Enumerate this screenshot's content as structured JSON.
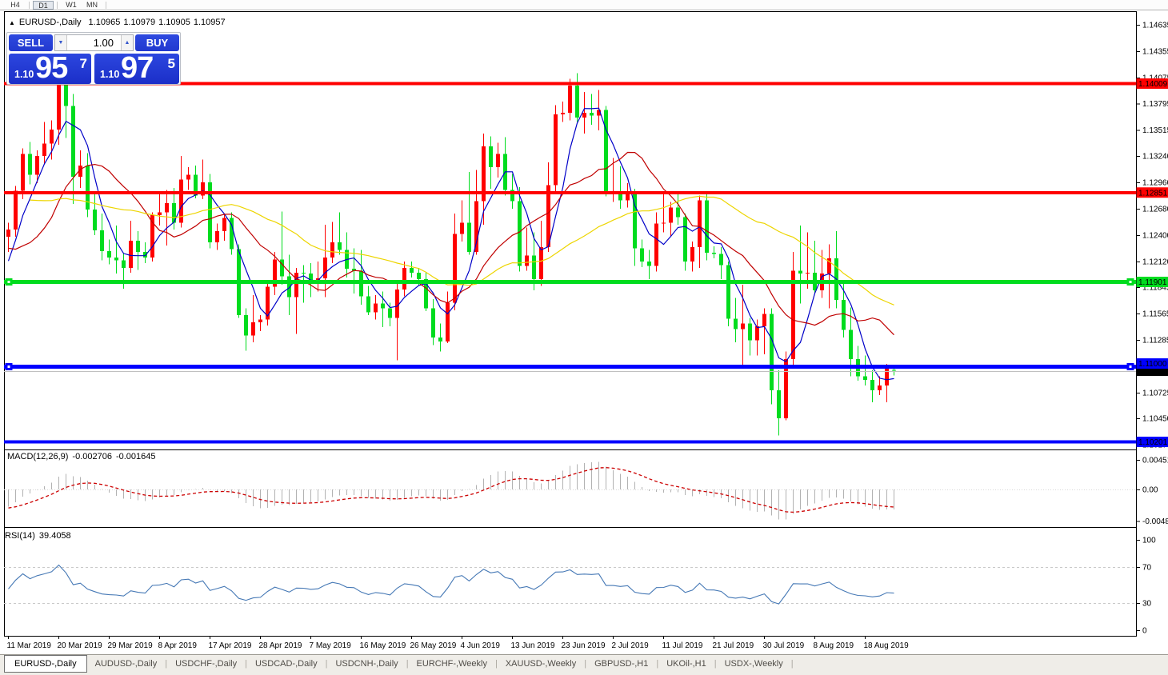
{
  "toolbar": {
    "buttons": [
      {
        "label": "H4",
        "active": false
      },
      {
        "label": "D1",
        "active": true
      },
      {
        "label": "W1",
        "active": false
      },
      {
        "label": "MN",
        "active": false
      }
    ]
  },
  "chart_header": {
    "collapse_icon": "▲",
    "symbol": "EURUSD-,Daily",
    "open": "1.10965",
    "high": "1.10979",
    "low": "1.10905",
    "close": "1.10957"
  },
  "trade_panel": {
    "sell_label": "SELL",
    "buy_label": "BUY",
    "volume": "1.00",
    "decrease_icon": "▼",
    "increase_icon": "▲",
    "sell_price": {
      "prefix": "1.10",
      "main": "95",
      "sup": "7"
    },
    "buy_price": {
      "prefix": "1.10",
      "main": "97",
      "sup": "5"
    }
  },
  "indicators": {
    "macd": {
      "name": "MACD(12,26,9)",
      "main": "-0.002706",
      "signal": "-0.001645"
    },
    "rsi": {
      "name": "RSI(14)",
      "value": "39.4058"
    }
  },
  "tabs": [
    {
      "label": "EURUSD-,Daily",
      "active": true
    },
    {
      "label": "AUDUSD-,Daily",
      "active": false
    },
    {
      "label": "USDCHF-,Daily",
      "active": false
    },
    {
      "label": "USDCAD-,Daily",
      "active": false
    },
    {
      "label": "USDCNH-,Daily",
      "active": false
    },
    {
      "label": "EURCHF-,Weekly",
      "active": false
    },
    {
      "label": "XAUUSD-,Weekly",
      "active": false
    },
    {
      "label": "GBPUSD-,H1",
      "active": false
    },
    {
      "label": "UKOil-,H1",
      "active": false
    },
    {
      "label": "USDX-,Weekly",
      "active": false
    }
  ],
  "chart_data": {
    "type": "candlestick",
    "symbol": "EURUSD-,Daily",
    "candle_up_color": "#FF0000",
    "candle_down_color": "#00DC1E",
    "x_labels": [
      "11 Mar 2019",
      "20 Mar 2019",
      "29 Mar 2019",
      "8 Apr 2019",
      "17 Apr 2019",
      "28 Apr 2019",
      "7 May 2019",
      "16 May 2019",
      "26 May 2019",
      "4 Jun 2019",
      "13 Jun 2019",
      "23 Jun 2019",
      "2 Jul 2019",
      "11 Jul 2019",
      "21 Jul 2019",
      "30 Jul 2019",
      "8 Aug 2019",
      "18 Aug 2019"
    ],
    "x_label_every": 7,
    "y_ticks": [
      "1.14635",
      "1.14355",
      "1.14075",
      "1.13795",
      "1.13515",
      "1.13240",
      "1.12960",
      "1.12680",
      "1.12400",
      "1.12120",
      "1.11845",
      "1.11565",
      "1.11285",
      "1.11005",
      "1.10725",
      "1.10450",
      "1.10170"
    ],
    "hlines": [
      {
        "price": 1.14009,
        "label": "1.14009",
        "color": "#FF0000",
        "text_color": "#FFFFFF",
        "thickness": 4,
        "selected": false
      },
      {
        "price": 1.12851,
        "label": "1.12851",
        "color": "#FF0000",
        "text_color": "#FFFFFF",
        "thickness": 4,
        "selected": false
      },
      {
        "price": 1.11901,
        "label": "1.11901",
        "color": "#00DC1E",
        "text_color": "#000000",
        "thickness": 5,
        "selected": true
      },
      {
        "price": 1.11,
        "label": "1.11000",
        "color": "#0000FF",
        "text_color": "#FFFFFF",
        "thickness": 5,
        "selected": true
      },
      {
        "price": 1.10201,
        "label": "1.10201",
        "color": "#0000FF",
        "text_color": "#FFFFFF",
        "thickness": 4,
        "selected": false
      }
    ],
    "bid_line": {
      "price": 1.10957,
      "label": "1.10957",
      "color": "#C0C0C0",
      "label_bg": "#000000",
      "label_text": "#FFFFFF"
    },
    "moving_averages": [
      {
        "period": 5,
        "color": "#0000C8"
      },
      {
        "period": 13,
        "color": "#C00000"
      },
      {
        "period": 34,
        "color": "#EDD500"
      }
    ],
    "macd": {
      "ticks": [
        {
          "v": 0.004517,
          "label": "0.004517"
        },
        {
          "v": 0,
          "label": "0.00"
        },
        {
          "v": -0.004806,
          "label": "-0.004806"
        }
      ],
      "histogram_color": "#B2B2B2",
      "signal_color": "#CC0000"
    },
    "rsi": {
      "ticks": [
        {
          "v": 100,
          "label": "100"
        },
        {
          "v": 70,
          "label": "70"
        },
        {
          "v": 30,
          "label": "30"
        },
        {
          "v": 0,
          "label": "0"
        }
      ],
      "levels": [
        70,
        30
      ],
      "color": "#4578B5"
    },
    "warmup_closes": [
      1.134,
      1.1345,
      1.135,
      1.1355,
      1.136,
      1.135,
      1.1335,
      1.132,
      1.1305,
      1.129,
      1.1275,
      1.1265,
      1.1255,
      1.1245,
      1.127,
      1.129,
      1.1305,
      1.1315,
      1.13,
      1.128,
      1.126,
      1.124,
      1.122,
      1.1205,
      1.119,
      1.118,
      1.1176,
      1.1195,
      1.1215,
      1.123
    ],
    "candles": [
      [
        1.1238,
        1.1253,
        1.1222,
        1.1246
      ],
      [
        1.1246,
        1.1292,
        1.1238,
        1.1287
      ],
      [
        1.1287,
        1.1332,
        1.1278,
        1.1326
      ],
      [
        1.1326,
        1.1339,
        1.1294,
        1.1304
      ],
      [
        1.1304,
        1.133,
        1.1295,
        1.1324
      ],
      [
        1.1324,
        1.136,
        1.1316,
        1.1337
      ],
      [
        1.1337,
        1.1362,
        1.132,
        1.1352
      ],
      [
        1.1352,
        1.1448,
        1.1336,
        1.1414
      ],
      [
        1.1414,
        1.142,
        1.1343,
        1.1377
      ],
      [
        1.1377,
        1.139,
        1.1273,
        1.1302
      ],
      [
        1.1302,
        1.133,
        1.129,
        1.1314
      ],
      [
        1.1314,
        1.1327,
        1.1259,
        1.1267
      ],
      [
        1.1267,
        1.1286,
        1.124,
        1.1245
      ],
      [
        1.1245,
        1.1263,
        1.1213,
        1.1223
      ],
      [
        1.1223,
        1.1235,
        1.1209,
        1.1216
      ],
      [
        1.1216,
        1.125,
        1.1199,
        1.1213
      ],
      [
        1.1213,
        1.1221,
        1.1183,
        1.1205
      ],
      [
        1.1205,
        1.1255,
        1.12,
        1.1234
      ],
      [
        1.1234,
        1.1244,
        1.1203,
        1.1222
      ],
      [
        1.1222,
        1.1232,
        1.121,
        1.1216
      ],
      [
        1.1216,
        1.1264,
        1.1212,
        1.1261
      ],
      [
        1.1261,
        1.1284,
        1.125,
        1.1264
      ],
      [
        1.1264,
        1.1288,
        1.1229,
        1.1274
      ],
      [
        1.1274,
        1.129,
        1.1246,
        1.1253
      ],
      [
        1.1253,
        1.1324,
        1.1248,
        1.1299
      ],
      [
        1.1299,
        1.1312,
        1.1288,
        1.1304
      ],
      [
        1.1304,
        1.1314,
        1.1279,
        1.1282
      ],
      [
        1.1282,
        1.132,
        1.1278,
        1.1296
      ],
      [
        1.1296,
        1.1305,
        1.1226,
        1.1232
      ],
      [
        1.1232,
        1.1252,
        1.1224,
        1.1244
      ],
      [
        1.1244,
        1.1262,
        1.1234,
        1.1258
      ],
      [
        1.1258,
        1.1264,
        1.1219,
        1.1225
      ],
      [
        1.1225,
        1.123,
        1.1152,
        1.1155
      ],
      [
        1.1155,
        1.1162,
        1.1117,
        1.1133
      ],
      [
        1.1133,
        1.1176,
        1.1126,
        1.1147
      ],
      [
        1.1147,
        1.1155,
        1.1138,
        1.115
      ],
      [
        1.115,
        1.1188,
        1.1144,
        1.1185
      ],
      [
        1.1185,
        1.1222,
        1.1176,
        1.1214
      ],
      [
        1.1214,
        1.1265,
        1.1187,
        1.1196
      ],
      [
        1.1196,
        1.1219,
        1.1155,
        1.1174
      ],
      [
        1.1174,
        1.1205,
        1.1135,
        1.12
      ],
      [
        1.12,
        1.1208,
        1.1168,
        1.1199
      ],
      [
        1.1199,
        1.121,
        1.1174,
        1.1191
      ],
      [
        1.1191,
        1.1212,
        1.118,
        1.1194
      ],
      [
        1.1194,
        1.1251,
        1.1174,
        1.1216
      ],
      [
        1.1216,
        1.1254,
        1.121,
        1.1232
      ],
      [
        1.1232,
        1.1264,
        1.1219,
        1.1224
      ],
      [
        1.1224,
        1.1243,
        1.1195,
        1.1204
      ],
      [
        1.1204,
        1.1226,
        1.1178,
        1.1202
      ],
      [
        1.1202,
        1.1224,
        1.1166,
        1.1175
      ],
      [
        1.1175,
        1.1186,
        1.1155,
        1.1158
      ],
      [
        1.1158,
        1.1176,
        1.115,
        1.1167
      ],
      [
        1.1167,
        1.118,
        1.1142,
        1.1162
      ],
      [
        1.1162,
        1.1168,
        1.1143,
        1.1152
      ],
      [
        1.1152,
        1.1188,
        1.1107,
        1.1182
      ],
      [
        1.1182,
        1.1212,
        1.1175,
        1.1205
      ],
      [
        1.1205,
        1.1212,
        1.1195,
        1.12
      ],
      [
        1.12,
        1.1205,
        1.1186,
        1.1193
      ],
      [
        1.1193,
        1.12,
        1.1159,
        1.1162
      ],
      [
        1.1162,
        1.1172,
        1.1123,
        1.1131
      ],
      [
        1.1131,
        1.1146,
        1.1116,
        1.1127
      ],
      [
        1.1127,
        1.118,
        1.1125,
        1.1168
      ],
      [
        1.1168,
        1.1263,
        1.116,
        1.1241
      ],
      [
        1.1241,
        1.1277,
        1.1233,
        1.1253
      ],
      [
        1.1253,
        1.1307,
        1.1219,
        1.1222
      ],
      [
        1.1222,
        1.1309,
        1.1219,
        1.1276
      ],
      [
        1.1276,
        1.1348,
        1.1251,
        1.1334
      ],
      [
        1.1334,
        1.1345,
        1.1289,
        1.1312
      ],
      [
        1.1312,
        1.1338,
        1.1301,
        1.1326
      ],
      [
        1.1326,
        1.1344,
        1.1282,
        1.1288
      ],
      [
        1.1288,
        1.1305,
        1.1268,
        1.1276
      ],
      [
        1.1276,
        1.1291,
        1.1201,
        1.1207
      ],
      [
        1.1207,
        1.1248,
        1.1202,
        1.1218
      ],
      [
        1.1218,
        1.1243,
        1.1181,
        1.1193
      ],
      [
        1.1193,
        1.1255,
        1.1186,
        1.1227
      ],
      [
        1.1227,
        1.1317,
        1.1222,
        1.1293
      ],
      [
        1.1293,
        1.1378,
        1.1285,
        1.1368
      ],
      [
        1.1368,
        1.1382,
        1.136,
        1.137
      ],
      [
        1.137,
        1.1406,
        1.1362,
        1.1399
      ],
      [
        1.1399,
        1.1412,
        1.136,
        1.1365
      ],
      [
        1.1365,
        1.1392,
        1.1348,
        1.137
      ],
      [
        1.137,
        1.139,
        1.1357,
        1.1367
      ],
      [
        1.1367,
        1.1394,
        1.1351,
        1.1373
      ],
      [
        1.1373,
        1.1377,
        1.1281,
        1.1285
      ],
      [
        1.1285,
        1.1322,
        1.1275,
        1.1285
      ],
      [
        1.1285,
        1.1313,
        1.1268,
        1.1277
      ],
      [
        1.1277,
        1.1295,
        1.1269,
        1.1283
      ],
      [
        1.1283,
        1.1289,
        1.1207,
        1.1226
      ],
      [
        1.1226,
        1.1235,
        1.1206,
        1.1212
      ],
      [
        1.1212,
        1.1224,
        1.1193,
        1.1207
      ],
      [
        1.1207,
        1.1264,
        1.1201,
        1.1252
      ],
      [
        1.1252,
        1.1286,
        1.1243,
        1.1253
      ],
      [
        1.1253,
        1.1275,
        1.1239,
        1.1269
      ],
      [
        1.1269,
        1.1285,
        1.1251,
        1.1259
      ],
      [
        1.1259,
        1.1263,
        1.1202,
        1.1212
      ],
      [
        1.1212,
        1.1233,
        1.1201,
        1.1227
      ],
      [
        1.1227,
        1.1282,
        1.1205,
        1.1277
      ],
      [
        1.1277,
        1.1283,
        1.1213,
        1.1221
      ],
      [
        1.1221,
        1.1228,
        1.1215,
        1.122
      ],
      [
        1.122,
        1.1227,
        1.1193,
        1.1208
      ],
      [
        1.1208,
        1.1212,
        1.1143,
        1.1151
      ],
      [
        1.1151,
        1.1173,
        1.1126,
        1.114
      ],
      [
        1.114,
        1.1187,
        1.1101,
        1.1146
      ],
      [
        1.1146,
        1.1152,
        1.1112,
        1.1128
      ],
      [
        1.1128,
        1.115,
        1.1112,
        1.1143
      ],
      [
        1.1143,
        1.1162,
        1.1113,
        1.1156
      ],
      [
        1.1156,
        1.1162,
        1.106,
        1.1075
      ],
      [
        1.1075,
        1.1096,
        1.1027,
        1.1045
      ],
      [
        1.1045,
        1.1116,
        1.1043,
        1.1108
      ],
      [
        1.1108,
        1.1222,
        1.1101,
        1.1202
      ],
      [
        1.1202,
        1.125,
        1.1167,
        1.1199
      ],
      [
        1.1199,
        1.1243,
        1.1183,
        1.12
      ],
      [
        1.12,
        1.1234,
        1.1178,
        1.1181
      ],
      [
        1.1181,
        1.1224,
        1.1173,
        1.1199
      ],
      [
        1.1199,
        1.123,
        1.1162,
        1.1215
      ],
      [
        1.1215,
        1.1244,
        1.1162,
        1.1171
      ],
      [
        1.1171,
        1.1192,
        1.1131,
        1.1139
      ],
      [
        1.1139,
        1.1163,
        1.109,
        1.1108
      ],
      [
        1.1108,
        1.1122,
        1.1085,
        1.109
      ],
      [
        1.109,
        1.1112,
        1.108,
        1.1086
      ],
      [
        1.1086,
        1.1096,
        1.1062,
        1.1075
      ],
      [
        1.1075,
        1.109,
        1.107,
        1.108
      ],
      [
        1.108,
        1.1103,
        1.1062,
        1.11
      ],
      [
        1.10965,
        1.10979,
        1.10905,
        1.10957
      ]
    ]
  }
}
